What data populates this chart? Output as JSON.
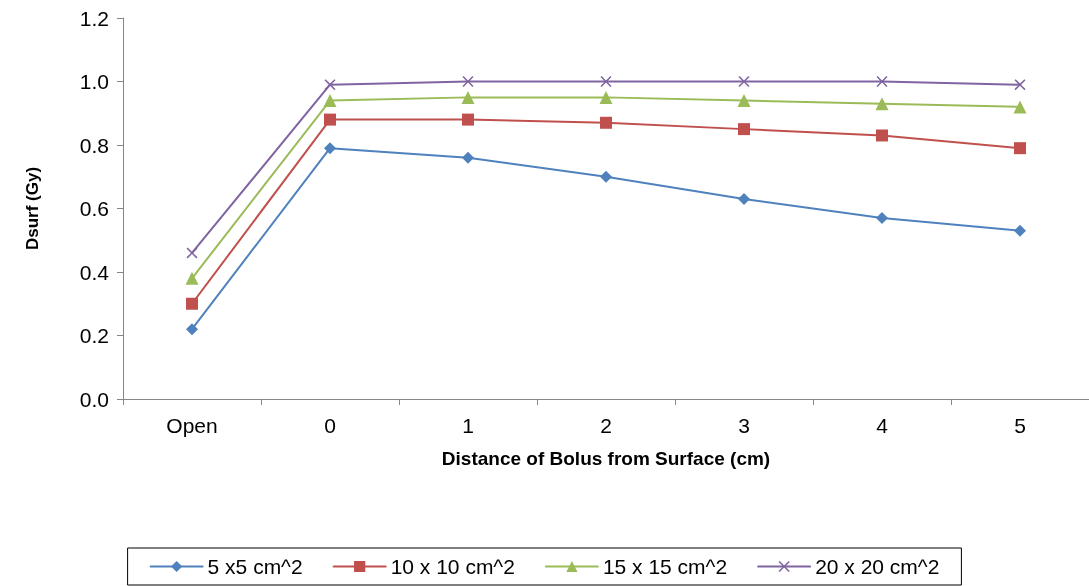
{
  "chart_data": {
    "type": "line",
    "xlabel": "Distance of Bolus from Surface (cm)",
    "ylabel": "Dsurf (Gy)",
    "categories": [
      "Open",
      "0",
      "1",
      "2",
      "3",
      "4",
      "5"
    ],
    "ylim": [
      0,
      1.2
    ],
    "yticks": [
      {
        "value": 0,
        "label": "0.0"
      },
      {
        "value": 0.2,
        "label": "0.2"
      },
      {
        "value": 0.4,
        "label": "0.4"
      },
      {
        "value": 0.6,
        "label": "0.6"
      },
      {
        "value": 0.8,
        "label": "0.8"
      },
      {
        "value": 1,
        "label": "1.0"
      },
      {
        "value": 1.2,
        "label": "1.2"
      }
    ],
    "grid": false,
    "legend": "bottom",
    "line_style": "solid",
    "series": [
      {
        "name": "5 x5 cm^2",
        "color": "#4f81bd",
        "marker": "diamond",
        "values": [
          0.22,
          0.79,
          0.76,
          0.7,
          0.63,
          0.57,
          0.53
        ]
      },
      {
        "name": "10 x 10 cm^2",
        "color": "#c0504d",
        "marker": "square",
        "values": [
          0.3,
          0.88,
          0.88,
          0.87,
          0.85,
          0.83,
          0.79
        ]
      },
      {
        "name": "15 x 15 cm^2",
        "color": "#9bbb59",
        "marker": "triangle",
        "values": [
          0.38,
          0.94,
          0.95,
          0.95,
          0.94,
          0.93,
          0.92
        ]
      },
      {
        "name": "20 x 20 cm^2",
        "color": "#8064a2",
        "marker": "cross",
        "values": [
          0.46,
          0.99,
          1.0,
          1.0,
          1.0,
          1.0,
          0.99
        ]
      }
    ]
  }
}
